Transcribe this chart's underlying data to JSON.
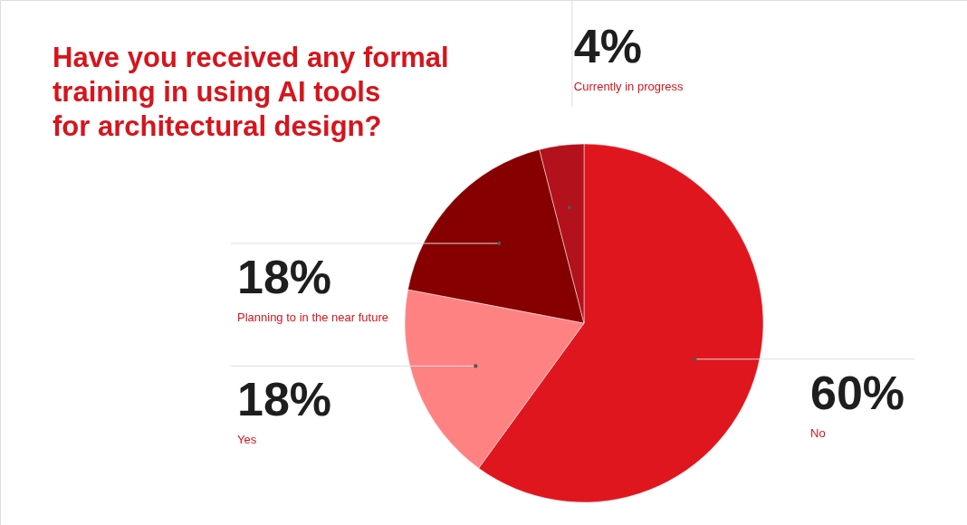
{
  "chart_data": {
    "type": "pie",
    "title": "Have you received any formal training in using AI tools for architectural design?",
    "categories": [
      "No",
      "Yes",
      "Planning to in the near future",
      "Currently in progress"
    ],
    "values": [
      60,
      18,
      18,
      4
    ],
    "colors": [
      "#e0161e",
      "#ff8282",
      "#870000",
      "#b3111b"
    ],
    "value_labels": [
      "60%",
      "18%",
      "18%",
      "4%"
    ]
  }
}
